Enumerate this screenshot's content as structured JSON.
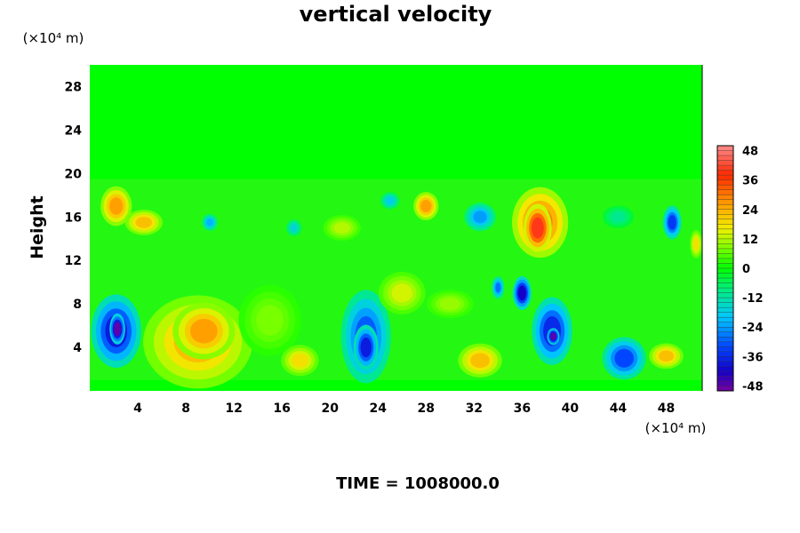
{
  "chart_data": {
    "type": "heatmap",
    "title": "vertical velocity",
    "ylabel": "Height",
    "y_unit": "(×10⁴ m)",
    "x_unit": "(×10⁴ m)",
    "xlim": [
      0,
      51
    ],
    "ylim": [
      0,
      30
    ],
    "x_ticks": [
      "4",
      "8",
      "12",
      "16",
      "20",
      "24",
      "28",
      "32",
      "36",
      "40",
      "44",
      "48"
    ],
    "y_ticks": [
      "4",
      "8",
      "12",
      "16",
      "20",
      "24",
      "28"
    ],
    "colorbar": {
      "min": -50,
      "max": 50,
      "ticks": [
        "48",
        "36",
        "24",
        "12",
        "0",
        "-12",
        "-24",
        "-36",
        "-48"
      ]
    },
    "background_value": 0,
    "features": [
      {
        "x": 2.2,
        "y": 5.5,
        "rx": 1.6,
        "ry": 2.6,
        "value": -38
      },
      {
        "x": 2.3,
        "y": 5.7,
        "rx": 0.5,
        "ry": 1.1,
        "value": -48
      },
      {
        "x": 9.0,
        "y": 4.5,
        "rx": 3.5,
        "ry": 3.3,
        "value": 22
      },
      {
        "x": 9.5,
        "y": 5.5,
        "rx": 2.0,
        "ry": 2.0,
        "value": 26
      },
      {
        "x": 17.5,
        "y": 2.8,
        "rx": 1.2,
        "ry": 1.1,
        "value": 18
      },
      {
        "x": 23.0,
        "y": 5.0,
        "rx": 1.6,
        "ry": 3.3,
        "value": -30
      },
      {
        "x": 23.0,
        "y": 4.0,
        "rx": 0.8,
        "ry": 1.6,
        "value": -38
      },
      {
        "x": 32.5,
        "y": 2.8,
        "rx": 1.4,
        "ry": 1.2,
        "value": 22
      },
      {
        "x": 38.5,
        "y": 5.5,
        "rx": 1.3,
        "ry": 2.4,
        "value": -36
      },
      {
        "x": 38.6,
        "y": 5.0,
        "rx": 0.4,
        "ry": 0.6,
        "value": -48
      },
      {
        "x": 44.5,
        "y": 3.0,
        "rx": 1.4,
        "ry": 1.5,
        "value": -32
      },
      {
        "x": 48.0,
        "y": 3.2,
        "rx": 1.1,
        "ry": 0.9,
        "value": 22
      },
      {
        "x": 36.0,
        "y": 9.0,
        "rx": 0.6,
        "ry": 1.2,
        "value": -42
      },
      {
        "x": 34.0,
        "y": 9.5,
        "rx": 0.4,
        "ry": 0.8,
        "value": -28
      },
      {
        "x": 37.5,
        "y": 15.5,
        "rx": 1.8,
        "ry": 2.5,
        "value": 30
      },
      {
        "x": 37.3,
        "y": 15.0,
        "rx": 0.9,
        "ry": 1.7,
        "value": 40
      },
      {
        "x": 2.2,
        "y": 17.0,
        "rx": 1.0,
        "ry": 1.4,
        "value": 26
      },
      {
        "x": 4.5,
        "y": 15.5,
        "rx": 1.2,
        "ry": 0.9,
        "value": 22
      },
      {
        "x": 28.0,
        "y": 17.0,
        "rx": 0.8,
        "ry": 1.0,
        "value": 26
      },
      {
        "x": 32.5,
        "y": 16.0,
        "rx": 1.0,
        "ry": 1.0,
        "value": -24
      },
      {
        "x": 48.5,
        "y": 15.5,
        "rx": 0.6,
        "ry": 1.2,
        "value": -34
      },
      {
        "x": 10.0,
        "y": 15.5,
        "rx": 0.5,
        "ry": 0.6,
        "value": -22
      },
      {
        "x": 21.0,
        "y": 15.0,
        "rx": 1.2,
        "ry": 0.9,
        "value": 12
      },
      {
        "x": 25.0,
        "y": 17.5,
        "rx": 0.6,
        "ry": 0.6,
        "value": -18
      },
      {
        "x": 17.0,
        "y": 15.0,
        "rx": 0.5,
        "ry": 0.6,
        "value": -16
      },
      {
        "x": 26.0,
        "y": 9.0,
        "rx": 1.5,
        "ry": 1.5,
        "value": 14
      },
      {
        "x": 15.0,
        "y": 6.5,
        "rx": 2.0,
        "ry": 2.5,
        "value": 8
      },
      {
        "x": 30.0,
        "y": 8.0,
        "rx": 1.5,
        "ry": 1.0,
        "value": 10
      },
      {
        "x": 44.0,
        "y": 16.0,
        "rx": 1.0,
        "ry": 0.8,
        "value": -10
      },
      {
        "x": 50.5,
        "y": 13.5,
        "rx": 0.4,
        "ry": 1.0,
        "value": 18
      }
    ],
    "footer": "TIME = 1008000.0"
  }
}
